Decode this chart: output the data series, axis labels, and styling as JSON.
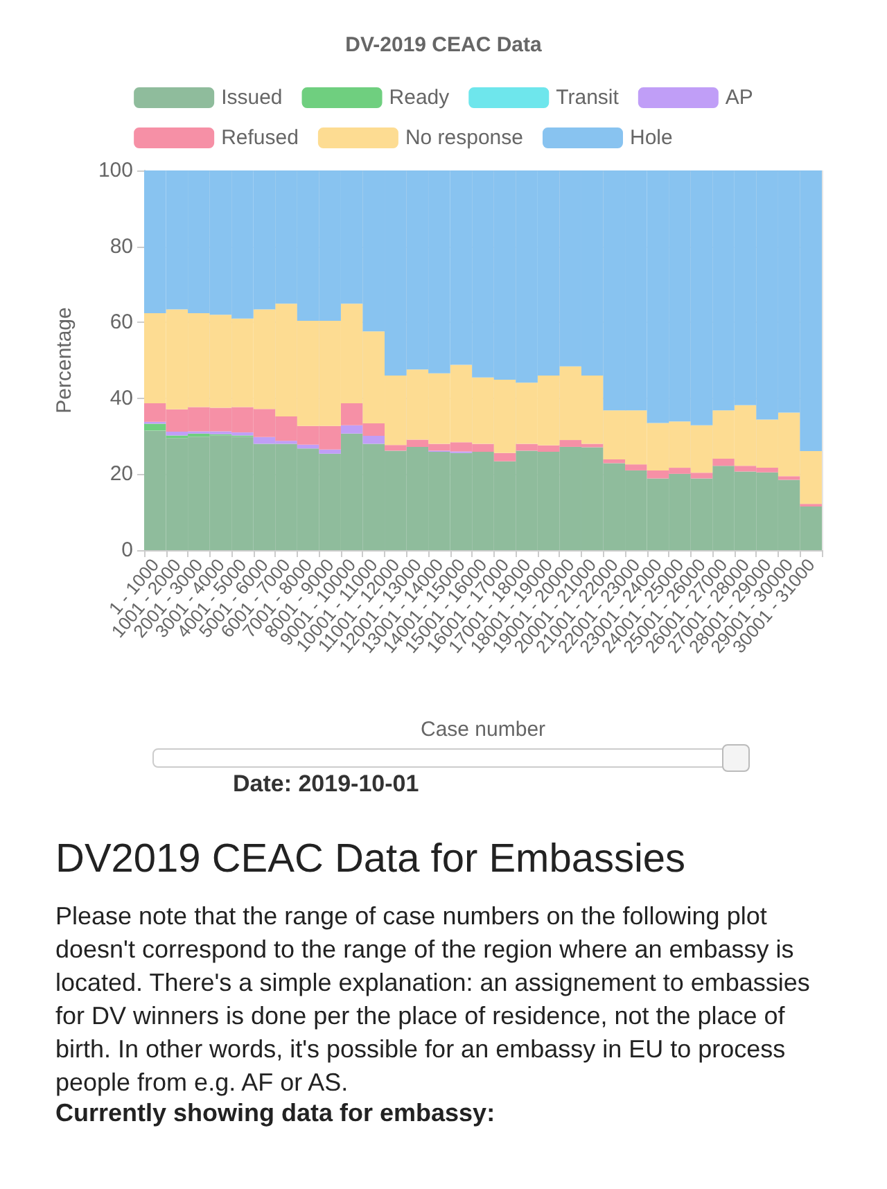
{
  "chart_data": {
    "type": "bar",
    "title": "DV-2019 CEAC Data",
    "xlabel": "Case number",
    "ylabel": "Percentage",
    "categories": [
      "1 - 1000",
      "1001 - 2000",
      "2001 - 3000",
      "3001 - 4000",
      "4001 - 5000",
      "5001 - 6000",
      "6001 - 7000",
      "7001 - 8000",
      "8001 - 9000",
      "9001 - 10000",
      "10001 - 11000",
      "11001 - 12000",
      "12001 - 13000",
      "13001 - 14000",
      "14001 - 15000",
      "15001 - 16000",
      "16001 - 17000",
      "17001 - 18000",
      "18001 - 19000",
      "19001 - 20000",
      "20001 - 21000",
      "21001 - 22000",
      "22001 - 23000",
      "23001 - 24000",
      "24001 - 25000",
      "25001 - 26000",
      "26001 - 27000",
      "27001 - 28000",
      "28001 - 29000",
      "29001 - 30000",
      "30001 - 31000"
    ],
    "stacked": true,
    "ylim": [
      0,
      100
    ],
    "yticks": [
      0,
      20,
      40,
      60,
      80,
      100
    ],
    "grid": true,
    "legend": "top",
    "series": [
      {
        "name": "Issued",
        "color": "#8fbc9c",
        "values": [
          31.5,
          29.5,
          29.9,
          30.2,
          29.9,
          28.0,
          28.0,
          26.8,
          25.4,
          30.7,
          28.0,
          26.2,
          27.2,
          25.9,
          25.6,
          25.9,
          23.4,
          26.2,
          25.9,
          27.2,
          27.1,
          22.9,
          21.0,
          18.9,
          20.1,
          18.9,
          22.2,
          20.7,
          20.5,
          18.5,
          11.5
        ]
      },
      {
        "name": "Ready",
        "color": "#6fcf7f",
        "values": [
          1.8,
          0.7,
          0.8,
          0.3,
          0.3,
          0,
          0,
          0,
          0,
          0,
          0,
          0,
          0,
          0,
          0,
          0,
          0,
          0,
          0,
          0,
          0,
          0,
          0,
          0,
          0,
          0,
          0,
          0,
          0,
          0,
          0
        ]
      },
      {
        "name": "Transit",
        "color": "#6ee6ec",
        "values": [
          0,
          0,
          0,
          0,
          0,
          0,
          0,
          0,
          0,
          0,
          0,
          0,
          0,
          0,
          0,
          0,
          0,
          0,
          0,
          0,
          0,
          0,
          0,
          0,
          0,
          0,
          0,
          0,
          0,
          0,
          0
        ]
      },
      {
        "name": "AP",
        "color": "#c09ef7",
        "values": [
          0.5,
          1.0,
          0.6,
          0.8,
          0.8,
          1.8,
          0.8,
          1.0,
          1.1,
          2.2,
          2.1,
          0,
          0,
          0.3,
          0.4,
          0,
          0,
          0,
          0,
          0,
          0,
          0,
          0,
          0,
          0,
          0,
          0,
          0,
          0,
          0,
          0
        ]
      },
      {
        "name": "Refused",
        "color": "#f690a6",
        "values": [
          4.9,
          5.9,
          6.4,
          6.2,
          6.7,
          7.4,
          6.4,
          4.9,
          6.2,
          5.8,
          3.3,
          1.5,
          1.9,
          1.8,
          2.4,
          2.1,
          2.2,
          1.8,
          1.7,
          1.8,
          0.9,
          1.0,
          1.6,
          2.1,
          1.6,
          1.5,
          1.9,
          1.5,
          1.2,
          1.0,
          0.7
        ]
      },
      {
        "name": "No response",
        "color": "#fddc92",
        "values": [
          23.7,
          26.3,
          24.7,
          24.5,
          23.3,
          26.2,
          29.7,
          27.7,
          27.7,
          26.2,
          24.2,
          18.3,
          18.5,
          18.6,
          20.4,
          17.5,
          19.3,
          16.1,
          18.4,
          19.4,
          18.0,
          12.9,
          14.2,
          12.5,
          12.2,
          12.5,
          12.7,
          16.0,
          12.7,
          16.7,
          13.9
        ]
      },
      {
        "name": "Hole",
        "color": "#88c3f0",
        "values": [
          37.6,
          36.6,
          37.6,
          38.2,
          39.0,
          36.6,
          35.1,
          39.6,
          39.6,
          35.1,
          42.4,
          54.0,
          52.4,
          53.4,
          51.2,
          54.5,
          55.1,
          55.9,
          54.0,
          51.6,
          54.0,
          63.2,
          63.2,
          66.5,
          66.1,
          67.1,
          63.2,
          61.8,
          65.6,
          63.8,
          73.9
        ]
      }
    ],
    "annotations": [
      "Date: 2019-10-01",
      "DV2019 CEAC Data for Embassies",
      "Please note that the range of case numbers on the following plot doesn't correspond to the range of the region where an embassy is located. There's a simple explanation: an assignement to embassies for DV winners is done per the place of residence, not the place of birth. In other words, it's possible for an embassy in EU to process people from e.g. AF or AS.",
      "Currently showing data for embassy:"
    ]
  }
}
